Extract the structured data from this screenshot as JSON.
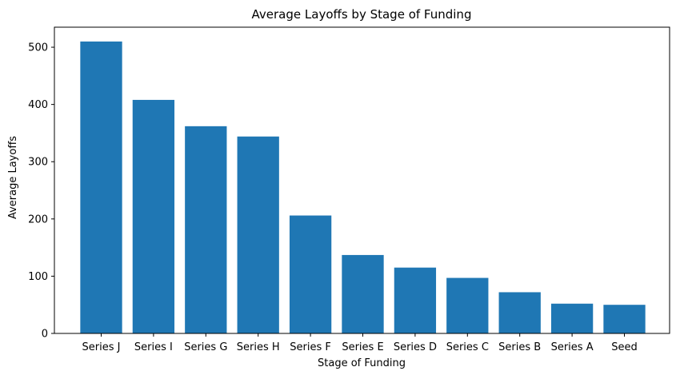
{
  "chart_data": {
    "type": "bar",
    "title": "Average Layoffs by Stage of Funding",
    "xlabel": "Stage of Funding",
    "ylabel": "Average Layoffs",
    "categories": [
      "Series J",
      "Series I",
      "Series G",
      "Series H",
      "Series F",
      "Series E",
      "Series D",
      "Series C",
      "Series B",
      "Series A",
      "Seed"
    ],
    "values": [
      510,
      408,
      362,
      344,
      206,
      137,
      115,
      97,
      72,
      52,
      50
    ],
    "ylim": [
      0,
      535
    ],
    "yticks": [
      0,
      100,
      200,
      300,
      400,
      500
    ],
    "grid": false,
    "bar_color": "#1f77b4"
  }
}
